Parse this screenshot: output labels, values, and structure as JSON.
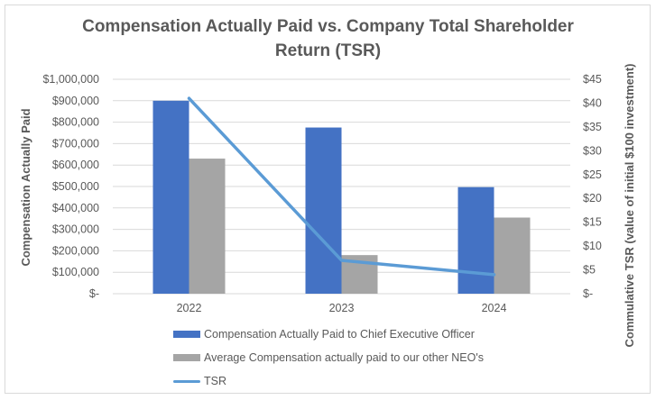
{
  "chart_data": {
    "type": "bar",
    "title": "Compensation Actually Paid vs. Company Total Shareholder Return (TSR)",
    "title_lines": [
      "Compensation Actually Paid vs. Company Total Shareholder",
      "Return (TSR)"
    ],
    "categories": [
      "2022",
      "2023",
      "2024"
    ],
    "series": [
      {
        "name": "Compensation Actually Paid to Chief Executive Officer",
        "type": "bar",
        "axis": "left",
        "color": "#4472c4",
        "values": [
          900000,
          775000,
          497000
        ]
      },
      {
        "name": "Average Compensation actually paid to our other NEO's",
        "type": "bar",
        "axis": "left",
        "color": "#a5a5a5",
        "values": [
          630000,
          180000,
          355000
        ]
      },
      {
        "name": "TSR",
        "type": "line",
        "axis": "right",
        "color": "#5b9bd5",
        "values": [
          41,
          7,
          4
        ]
      }
    ],
    "ylabel": "Compensation Actually Paid",
    "y2label": "Commulative TSR (value of initial $100 investment)",
    "xlabel": "",
    "ylim": [
      0,
      1000000
    ],
    "y2lim": [
      0,
      45
    ],
    "yticks": [
      "$-",
      "$100,000",
      "$200,000",
      "$300,000",
      "$400,000",
      "$500,000",
      "$600,000",
      "$700,000",
      "$800,000",
      "$900,000",
      "$1,000,000"
    ],
    "y2ticks": [
      "$-",
      "$5",
      "$10",
      "$15",
      "$20",
      "$25",
      "$30",
      "$35",
      "$40",
      "$45"
    ],
    "grid": true,
    "legend_position": "bottom"
  }
}
